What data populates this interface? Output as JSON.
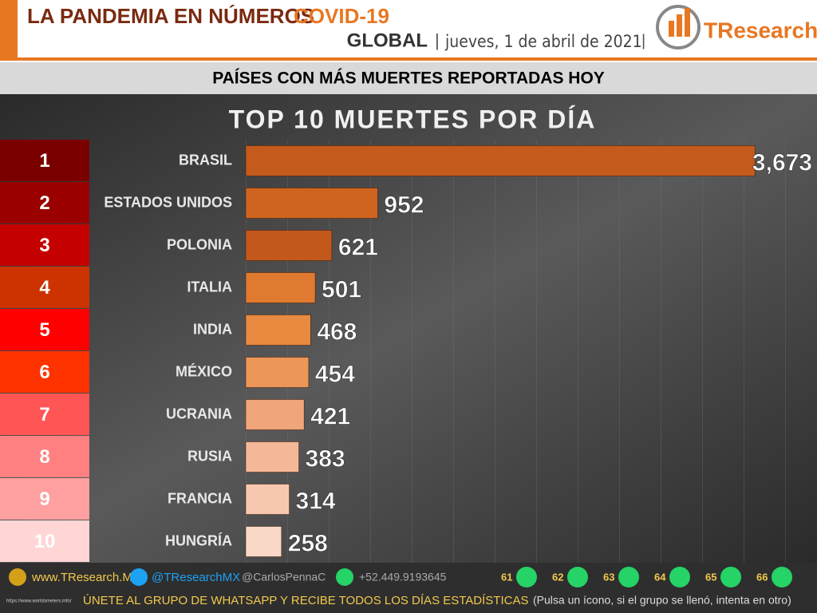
{
  "header": {
    "title": "LA PANDEMIA EN NÚMEROS",
    "title_highlight": "COVID-19",
    "scope": "GLOBAL",
    "date": "jueves, 1 de abril de 2021",
    "logo": "TResearch"
  },
  "banner": "PAÍSES CON MÁS MUERTES REPORTADAS HOY",
  "chart_data": {
    "type": "hbar",
    "title": "TOP 10 MUERTES POR DÍA",
    "ranks": [
      1,
      2,
      3,
      4,
      5,
      6,
      7,
      8,
      9,
      10
    ],
    "rank_colors": [
      "#7a0000",
      "#9a0000",
      "#c40000",
      "#cc3300",
      "#ff0000",
      "#ff3300",
      "#ff5555",
      "#ff8080",
      "#ffa0a0",
      "#ffd5d5"
    ],
    "categories": [
      "BRASIL",
      "ESTADOS UNIDOS",
      "POLONIA",
      "ITALIA",
      "INDIA",
      "MÉXICO",
      "UCRANIA",
      "RUSIA",
      "FRANCIA",
      "HUNGRÍA"
    ],
    "values": [
      3673,
      952,
      621,
      501,
      468,
      454,
      421,
      383,
      314,
      258
    ],
    "value_labels": [
      "3,673",
      "952",
      "621",
      "501",
      "468",
      "454",
      "421",
      "383",
      "314",
      "258"
    ],
    "colors": [
      "#c45a1c",
      "#cf6420",
      "#c2581c",
      "#e07a30",
      "#e88a40",
      "#ec9658",
      "#f0a57a",
      "#f4b898",
      "#f7c8b0",
      "#f9d8c8"
    ],
    "xlim": [
      0,
      4000
    ]
  },
  "footer": {
    "website": "www.TResearch.Mx",
    "twitter": "@TResearchMX",
    "personal": "@CarlosPennaC",
    "phone": "+52.449.9193645",
    "groups": [
      "61",
      "62",
      "63",
      "64",
      "65",
      "66"
    ],
    "cta": "ÚNETE AL GRUPO DE WHATSAPP Y RECIBE TODOS LOS DÍAS ESTADÍSTICAS",
    "note": "(Pulsa un ícono, si el grupo se llenó, intenta en otro)",
    "source": "https://www.worldometers.info/"
  }
}
